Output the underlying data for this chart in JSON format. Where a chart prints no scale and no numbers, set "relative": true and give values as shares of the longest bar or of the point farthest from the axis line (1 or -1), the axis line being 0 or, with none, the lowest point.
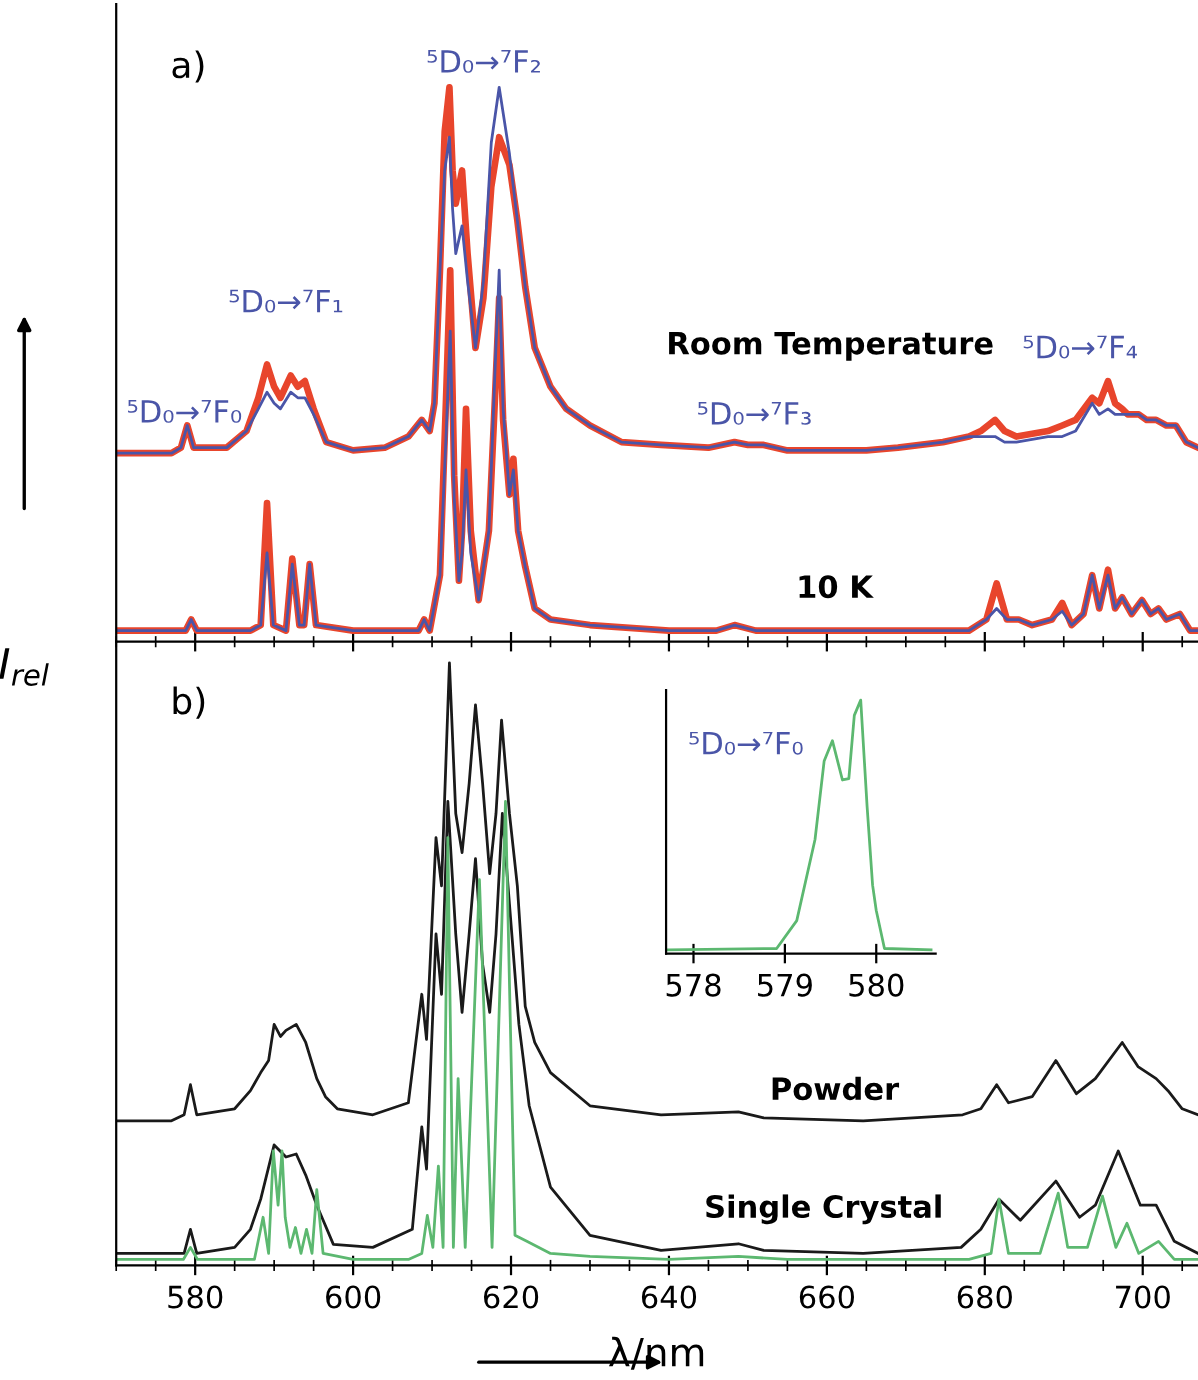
{
  "chart_data": [
    {
      "type": "line",
      "relative": true,
      "tick_labels": false,
      "xlim": [
        570,
        707
      ],
      "ylabel": "I$_{rel}$",
      "xticks": [
        {
          "value": 570,
          "label": null
        },
        {
          "value": 575,
          "label": null
        },
        580,
        {
          "value": 585,
          "label": null
        },
        {
          "value": 590,
          "label": null
        },
        {
          "value": 595,
          "label": null
        },
        600,
        {
          "value": 605,
          "label": null
        },
        {
          "value": 610,
          "label": null
        },
        {
          "value": 615,
          "label": null
        },
        620,
        {
          "value": 625,
          "label": null
        },
        {
          "value": 630,
          "label": null
        },
        {
          "value": 635,
          "label": null
        },
        640,
        {
          "value": 645,
          "label": null
        },
        {
          "value": 650,
          "label": null
        },
        {
          "value": 655,
          "label": null
        },
        660,
        {
          "value": 665,
          "label": null
        },
        {
          "value": 670,
          "label": null
        },
        {
          "value": 675,
          "label": null
        },
        680,
        {
          "value": 685,
          "label": null
        },
        {
          "value": 690,
          "label": null
        },
        {
          "value": 695,
          "label": null
        },
        700,
        {
          "value": 705,
          "label": null
        }
      ],
      "grid": false,
      "legend": false,
      "marker": "none",
      "line_style": "solid",
      "series": [
        {
          "color": "#e8452c",
          "x": [
            570,
            577,
            578.2,
            579,
            579.8,
            584,
            586.5,
            588,
            589.1,
            590,
            590.8,
            592.1,
            593,
            593.9,
            595,
            596.6,
            600,
            604,
            607,
            608.7,
            609.7,
            610.3,
            611,
            611.6,
            612.2,
            612.6,
            613,
            613.8,
            614.5,
            615.5,
            616.5,
            617.5,
            618.5,
            619.8,
            620.8,
            621.8,
            623,
            625,
            627,
            630,
            634,
            639,
            645,
            648.3,
            650,
            652,
            655,
            660,
            665,
            669,
            674.7,
            678,
            679.5,
            681.3,
            682.5,
            684,
            686,
            688,
            689.8,
            691.5,
            693.6,
            694.5,
            695.6,
            696.5,
            697.4,
            698.1,
            699.5,
            700.5,
            701.7,
            703,
            704.2,
            705.5,
            707
          ],
          "values": [
            0.34,
            0.34,
            0.35,
            0.39,
            0.35,
            0.35,
            0.38,
            0.44,
            0.5,
            0.46,
            0.44,
            0.48,
            0.46,
            0.47,
            0.42,
            0.36,
            0.345,
            0.35,
            0.37,
            0.4,
            0.38,
            0.43,
            0.67,
            0.92,
            1.0,
            0.85,
            0.79,
            0.85,
            0.7,
            0.53,
            0.62,
            0.82,
            0.91,
            0.86,
            0.76,
            0.64,
            0.53,
            0.46,
            0.42,
            0.39,
            0.36,
            0.355,
            0.35,
            0.36,
            0.355,
            0.355,
            0.345,
            0.345,
            0.345,
            0.35,
            0.36,
            0.37,
            0.38,
            0.4,
            0.38,
            0.37,
            0.375,
            0.38,
            0.39,
            0.4,
            0.44,
            0.43,
            0.47,
            0.43,
            0.42,
            0.41,
            0.41,
            0.4,
            0.4,
            0.39,
            0.39,
            0.36,
            0.35
          ]
        },
        {
          "color": "#4a55a8",
          "x": [
            570,
            577,
            578.2,
            579,
            579.8,
            584,
            586.5,
            588,
            589.1,
            590,
            590.8,
            592.1,
            593,
            593.9,
            595,
            596.6,
            600,
            604,
            607,
            608.7,
            609.7,
            610.3,
            611,
            611.6,
            612.2,
            612.6,
            613,
            613.8,
            614.5,
            615.5,
            616.5,
            617.5,
            618.5,
            619.8,
            620.8,
            621.8,
            623,
            625,
            627,
            630,
            634,
            639,
            645,
            648.3,
            650,
            652,
            655,
            660,
            665,
            669,
            674.7,
            678,
            679.5,
            681.3,
            682.5,
            684,
            686,
            688,
            689.8,
            691.5,
            693.6,
            694.5,
            695.6,
            696.5,
            697.4,
            698.1,
            699.5,
            700.5,
            701.7,
            703,
            704.2,
            705.5,
            707
          ],
          "values": [
            0.34,
            0.34,
            0.35,
            0.39,
            0.35,
            0.35,
            0.38,
            0.42,
            0.45,
            0.43,
            0.42,
            0.45,
            0.44,
            0.44,
            0.41,
            0.36,
            0.345,
            0.35,
            0.37,
            0.4,
            0.38,
            0.43,
            0.67,
            0.85,
            0.91,
            0.78,
            0.7,
            0.75,
            0.65,
            0.53,
            0.65,
            0.9,
            1.0,
            0.88,
            0.76,
            0.64,
            0.53,
            0.46,
            0.42,
            0.39,
            0.36,
            0.355,
            0.35,
            0.36,
            0.355,
            0.355,
            0.345,
            0.345,
            0.345,
            0.35,
            0.36,
            0.37,
            0.37,
            0.37,
            0.36,
            0.36,
            0.365,
            0.37,
            0.37,
            0.38,
            0.43,
            0.41,
            0.42,
            0.41,
            0.41,
            0.41,
            0.41,
            0.4,
            0.4,
            0.39,
            0.39,
            0.36,
            0.35
          ]
        },
        {
          "color": "#e8452c",
          "x": [
            570,
            578.8,
            579.5,
            580.2,
            587,
            588.3,
            589.1,
            589.9,
            591.5,
            592.3,
            593.2,
            593.8,
            594.5,
            595.3,
            600,
            607,
            608.3,
            609,
            609.7,
            611,
            611.8,
            612.3,
            612.8,
            613.4,
            613.8,
            614.3,
            614.9,
            615.9,
            617.2,
            618,
            618.5,
            619,
            619.8,
            620.3,
            620.9,
            621.8,
            623,
            625,
            630,
            640,
            646,
            648.3,
            651,
            660,
            670,
            678,
            680.2,
            681.5,
            682.8,
            684.3,
            686,
            688.5,
            689.8,
            691,
            692.5,
            693.6,
            694.5,
            695.6,
            696.5,
            697.4,
            698.6,
            699.9,
            701,
            702,
            703,
            704.7,
            706,
            707
          ],
          "values": [
            0.02,
            0.02,
            0.04,
            0.02,
            0.02,
            0.03,
            0.25,
            0.03,
            0.02,
            0.15,
            0.03,
            0.03,
            0.14,
            0.03,
            0.02,
            0.02,
            0.02,
            0.04,
            0.02,
            0.12,
            0.45,
            0.67,
            0.3,
            0.11,
            0.2,
            0.42,
            0.2,
            0.075,
            0.2,
            0.45,
            0.62,
            0.4,
            0.265,
            0.33,
            0.2,
            0.135,
            0.06,
            0.04,
            0.03,
            0.02,
            0.02,
            0.03,
            0.02,
            0.02,
            0.02,
            0.02,
            0.04,
            0.105,
            0.04,
            0.04,
            0.03,
            0.04,
            0.07,
            0.03,
            0.05,
            0.12,
            0.06,
            0.13,
            0.06,
            0.08,
            0.05,
            0.075,
            0.05,
            0.06,
            0.04,
            0.05,
            0.02,
            0.02
          ]
        },
        {
          "color": "#4a55a8",
          "x": [
            570,
            578.8,
            579.5,
            580.2,
            587,
            588.3,
            589.1,
            589.9,
            591.5,
            592.3,
            593.2,
            593.8,
            594.5,
            595.3,
            600,
            607,
            608.3,
            609,
            609.7,
            611,
            611.8,
            612.3,
            612.8,
            613.4,
            613.8,
            614.3,
            614.9,
            615.9,
            617.2,
            618,
            618.5,
            619,
            619.8,
            620.3,
            620.9,
            621.8,
            623,
            625,
            630,
            640,
            646,
            648.3,
            651,
            660,
            670,
            678,
            680.2,
            681.5,
            682.8,
            684.3,
            686,
            688.5,
            689.8,
            691,
            692.5,
            693.6,
            694.5,
            695.6,
            696.5,
            697.4,
            698.6,
            699.9,
            701,
            702,
            703,
            704.7,
            706,
            707
          ],
          "values": [
            0.02,
            0.02,
            0.04,
            0.02,
            0.02,
            0.03,
            0.16,
            0.03,
            0.02,
            0.14,
            0.03,
            0.03,
            0.14,
            0.03,
            0.02,
            0.02,
            0.02,
            0.04,
            0.02,
            0.12,
            0.38,
            0.56,
            0.26,
            0.11,
            0.16,
            0.31,
            0.16,
            0.075,
            0.2,
            0.5,
            0.67,
            0.42,
            0.265,
            0.31,
            0.2,
            0.135,
            0.06,
            0.04,
            0.03,
            0.02,
            0.02,
            0.03,
            0.02,
            0.02,
            0.02,
            0.02,
            0.04,
            0.06,
            0.04,
            0.04,
            0.03,
            0.04,
            0.055,
            0.03,
            0.05,
            0.12,
            0.06,
            0.12,
            0.06,
            0.08,
            0.05,
            0.075,
            0.05,
            0.06,
            0.04,
            0.05,
            0.02,
            0.02
          ]
        }
      ],
      "annotations": [
        "a)",
        "⁵D₀→⁷F₀",
        "⁵D₀→⁷F₁",
        "⁵D₀→⁷F₂",
        "⁵D₀→⁷F₃",
        "⁵D₀→⁷F₄",
        "Room Temperature",
        "10 K"
      ]
    },
    {
      "type": "line",
      "relative": true,
      "tick_labels": "x",
      "xlim": [
        570,
        707
      ],
      "xlabel": "λ/nm",
      "xticks": [
        {
          "value": 570,
          "label": null
        },
        {
          "value": 575,
          "label": null
        },
        580,
        {
          "value": 585,
          "label": null
        },
        {
          "value": 590,
          "label": null
        },
        {
          "value": 595,
          "label": null
        },
        600,
        {
          "value": 605,
          "label": null
        },
        {
          "value": 610,
          "label": null
        },
        {
          "value": 615,
          "label": null
        },
        620,
        {
          "value": 625,
          "label": null
        },
        {
          "value": 630,
          "label": null
        },
        {
          "value": 635,
          "label": null
        },
        640,
        {
          "value": 645,
          "label": null
        },
        {
          "value": 650,
          "label": null
        },
        {
          "value": 655,
          "label": null
        },
        660,
        {
          "value": 665,
          "label": null
        },
        {
          "value": 670,
          "label": null
        },
        {
          "value": 675,
          "label": null
        },
        680,
        {
          "value": 685,
          "label": null
        },
        {
          "value": 690,
          "label": null
        },
        {
          "value": 695,
          "label": null
        },
        700,
        {
          "value": 705,
          "label": null
        }
      ],
      "grid": false,
      "legend": false,
      "marker": "none",
      "line_style": "solid",
      "series": [
        {
          "color": "#1a1a1a",
          "x": [
            570,
            577,
            578.6,
            579.4,
            580.2,
            585,
            587,
            588.3,
            589.3,
            590,
            590.8,
            591.5,
            592.8,
            594,
            595.4,
            596.5,
            598,
            602.5,
            607,
            608.7,
            609.3,
            610.5,
            611.2,
            612.2,
            613,
            613.8,
            614.7,
            615.5,
            616.4,
            617.3,
            618.1,
            618.8,
            619.8,
            620.8,
            621.8,
            623,
            625,
            630,
            639,
            648.8,
            652,
            664.6,
            677.2,
            679.5,
            681.5,
            683,
            686,
            689,
            691.6,
            694,
            697.4,
            699.4,
            701.7,
            703.2,
            705,
            707
          ],
          "values": [
            0.24,
            0.24,
            0.25,
            0.3,
            0.25,
            0.26,
            0.29,
            0.32,
            0.34,
            0.4,
            0.38,
            0.39,
            0.4,
            0.37,
            0.31,
            0.28,
            0.26,
            0.25,
            0.27,
            0.45,
            0.375,
            0.71,
            0.63,
            1.0,
            0.75,
            0.685,
            0.8,
            0.93,
            0.8,
            0.65,
            0.75,
            0.905,
            0.75,
            0.63,
            0.43,
            0.37,
            0.32,
            0.265,
            0.25,
            0.255,
            0.245,
            0.24,
            0.25,
            0.26,
            0.3,
            0.27,
            0.28,
            0.34,
            0.285,
            0.31,
            0.37,
            0.33,
            0.31,
            0.29,
            0.26,
            0.25
          ]
        },
        {
          "color": "#1a1a1a",
          "x": [
            570,
            578.6,
            579.4,
            580.2,
            585,
            587,
            588.3,
            590,
            591.5,
            592.8,
            594,
            595.4,
            597.5,
            602.5,
            607.5,
            608.7,
            609.3,
            610.5,
            611.2,
            612,
            613,
            613.8,
            614.7,
            615.5,
            616.4,
            617.3,
            618.1,
            618.9,
            619.8,
            621,
            622.3,
            625,
            630,
            639,
            648.8,
            652,
            664.6,
            677,
            679.5,
            681.8,
            684.5,
            689,
            692,
            694,
            696.9,
            699.7,
            701.7,
            704,
            707
          ],
          "values": [
            0.02,
            0.02,
            0.06,
            0.02,
            0.03,
            0.06,
            0.11,
            0.2,
            0.18,
            0.185,
            0.15,
            0.1,
            0.035,
            0.03,
            0.06,
            0.23,
            0.16,
            0.55,
            0.45,
            0.77,
            0.55,
            0.42,
            0.55,
            0.675,
            0.5,
            0.42,
            0.55,
            0.75,
            0.6,
            0.4,
            0.265,
            0.13,
            0.05,
            0.025,
            0.036,
            0.025,
            0.02,
            0.03,
            0.06,
            0.11,
            0.075,
            0.14,
            0.08,
            0.1,
            0.19,
            0.1,
            0.1,
            0.04,
            0.02
          ]
        },
        {
          "color": "#5cb870",
          "x": [
            570,
            578.5,
            579.4,
            580.3,
            587.5,
            588.6,
            589.3,
            589.9,
            590.5,
            591,
            591.4,
            592,
            592.7,
            593.4,
            594.1,
            594.8,
            595.4,
            596.2,
            600,
            607,
            608.7,
            609.4,
            610.1,
            610.8,
            611.4,
            612,
            612.7,
            613.3,
            614.2,
            616,
            617.6,
            619.3,
            620.5,
            622,
            625,
            630,
            640,
            648.8,
            655,
            678,
            680.8,
            681.8,
            683,
            687,
            689.3,
            690.5,
            693,
            694.9,
            696.6,
            698,
            699.5,
            702,
            704,
            707
          ],
          "values": [
            0.01,
            0.01,
            0.03,
            0.01,
            0.01,
            0.08,
            0.02,
            0.19,
            0.1,
            0.19,
            0.08,
            0.03,
            0.063,
            0.02,
            0.06,
            0.02,
            0.126,
            0.02,
            0.01,
            0.01,
            0.02,
            0.083,
            0.03,
            0.165,
            0.03,
            0.71,
            0.03,
            0.31,
            0.03,
            0.64,
            0.03,
            0.77,
            0.05,
            0.04,
            0.02,
            0.015,
            0.01,
            0.015,
            0.01,
            0.01,
            0.02,
            0.11,
            0.02,
            0.02,
            0.12,
            0.03,
            0.03,
            0.115,
            0.03,
            0.07,
            0.02,
            0.04,
            0.01,
            0.01
          ]
        }
      ],
      "annotations": [
        "b)",
        "Powder",
        "Single Crystal"
      ]
    },
    {
      "type": "line",
      "relative": true,
      "tick_labels": "x",
      "xlim": [
        577.7,
        580.65
      ],
      "xticks": [
        578,
        579,
        580
      ],
      "grid": false,
      "legend": false,
      "marker": "none",
      "line_style": "solid",
      "series": [
        {
          "color": "#5cb870",
          "x": [
            577.72,
            578.91,
            579.13,
            579.33,
            579.43,
            579.52,
            579.63,
            579.7,
            579.76,
            579.83,
            579.9,
            579.96,
            580,
            580.09,
            580.6
          ],
          "values": [
            0.015,
            0.02,
            0.13,
            0.45,
            0.76,
            0.84,
            0.685,
            0.69,
            0.94,
            1.0,
            0.58,
            0.27,
            0.17,
            0.02,
            0.015
          ]
        }
      ],
      "annotations": [
        "⁵D₀→⁷F₀"
      ]
    }
  ]
}
